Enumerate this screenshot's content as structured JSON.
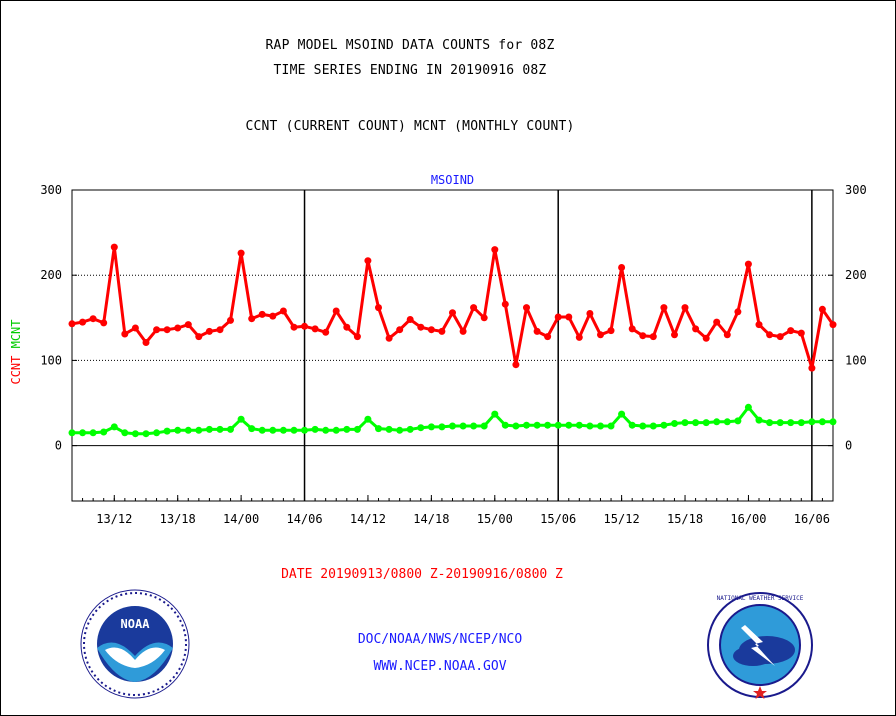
{
  "header": {
    "title_line1": "RAP MODEL MSOIND DATA COUNTS for 08Z",
    "title_line2": "TIME SERIES ENDING IN 20190916 08Z",
    "subtitle": "CCNT (CURRENT COUNT) MCNT (MONTHLY COUNT)"
  },
  "chart_data": {
    "type": "line",
    "title": "MSOIND",
    "ylabel_ccnt": "CCNT",
    "ylabel_mcnt": "MCNT",
    "xlabel": "DATE 20190913/0800 Z-20190916/0800 Z",
    "ylim": [
      -65,
      300
    ],
    "xlim": [
      13.3333,
      16.3333
    ],
    "yticks": [
      0,
      100,
      200,
      300
    ],
    "xtick_labels": [
      "13/12",
      "13/18",
      "14/00",
      "14/06",
      "14/12",
      "14/18",
      "15/00",
      "15/06",
      "15/12",
      "15/18",
      "16/00",
      "16/06"
    ],
    "grid": "horizontal dotted at 100 and 200",
    "series": [
      {
        "name": "CCNT",
        "color": "#ff0000",
        "values": [
          143,
          145,
          149,
          144,
          233,
          131,
          138,
          121,
          136,
          136,
          138,
          142,
          128,
          134,
          136,
          147,
          226,
          149,
          154,
          152,
          158,
          139,
          140,
          137,
          133,
          158,
          139,
          128,
          217,
          162,
          126,
          136,
          148,
          139,
          136,
          134,
          156,
          134,
          162,
          150,
          230,
          166,
          95,
          162,
          134,
          128,
          151,
          151,
          127,
          155,
          130,
          135,
          209,
          137,
          129,
          128,
          162,
          130,
          162,
          137,
          126,
          145,
          130,
          157,
          213,
          142,
          130,
          128,
          135,
          132,
          91,
          160,
          142
        ]
      },
      {
        "name": "MCNT",
        "color": "#00ff00",
        "values": [
          15,
          15,
          15,
          16,
          22,
          15,
          14,
          14,
          15,
          17,
          18,
          18,
          18,
          19,
          19,
          19,
          31,
          20,
          18,
          18,
          18,
          18,
          18,
          19,
          18,
          18,
          19,
          19,
          31,
          20,
          19,
          18,
          19,
          21,
          22,
          22,
          23,
          23,
          23,
          23,
          37,
          24,
          23,
          24,
          24,
          24,
          24,
          24,
          24,
          23,
          23,
          23,
          37,
          24,
          23,
          23,
          24,
          26,
          27,
          27,
          27,
          28,
          28,
          29,
          45,
          30,
          27,
          27,
          27,
          27,
          28,
          28,
          28
        ]
      }
    ]
  },
  "footer": {
    "line1": "DOC/NOAA/NWS/NCEP/NCO",
    "line2": "WWW.NCEP.NOAA.GOV"
  },
  "logos": {
    "left": "NOAA",
    "right": "NATIONAL WEATHER SERVICE"
  },
  "colors": {
    "ccnt": "#ff0000",
    "mcnt": "#00ff00",
    "text_blue": "#1a1aff"
  }
}
